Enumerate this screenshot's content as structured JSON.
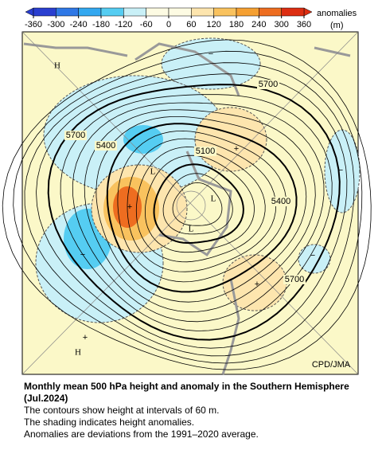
{
  "colorbar": {
    "label": "anomalies",
    "unit": "(m)",
    "ticks": [
      -360,
      -300,
      -240,
      -180,
      -120,
      -60,
      0,
      60,
      120,
      180,
      240,
      300,
      360
    ],
    "colors": [
      "#2a3fd0",
      "#2f78e6",
      "#33a8f0",
      "#55cdf2",
      "#c9f0f7",
      "#fdfbe3",
      "#fdfbe3",
      "#fde5ae",
      "#f9c25e",
      "#f5a032",
      "#ee6d20",
      "#dd2e12"
    ]
  },
  "map": {
    "centers": [
      "H",
      "H",
      "L",
      "L",
      "L"
    ],
    "anomaly_signs": [
      "+",
      "+",
      "+",
      "+",
      "−",
      "−",
      "−",
      "−"
    ],
    "contour_labels": [
      "5700",
      "5700",
      "5400",
      "5100",
      "5400",
      "5700"
    ],
    "credit": "CPD/JMA"
  },
  "caption": {
    "title": "Monthly mean 500 hPa height and anomaly in the Southern Hemisphere (Jul.2024)",
    "lines": [
      "The contours show height at intervals of 60 m.",
      "The shading indicates height anomalies.",
      "Anomalies are deviations from the 1991–2020 average."
    ]
  }
}
